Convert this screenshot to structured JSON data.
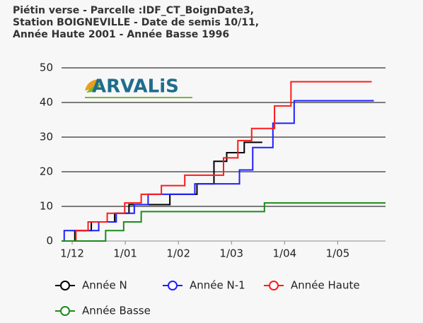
{
  "chart_data": {
    "type": "step-line",
    "title": [
      "Piétin verse - Parcelle :IDF_CT_BoignDate3,",
      "Station BOIGNEVILLE - Date de semis 10/11,",
      "Année Haute 2001 - Année Basse 1996"
    ],
    "logo": "ARVALiS",
    "xlim": [
      -0.2,
      5.9
    ],
    "xticks": [
      {
        "value": 0,
        "label": "1/12"
      },
      {
        "value": 1,
        "label": "1/01"
      },
      {
        "value": 2,
        "label": "1/02"
      },
      {
        "value": 3,
        "label": "1/03"
      },
      {
        "value": 4,
        "label": "1/04"
      },
      {
        "value": 5,
        "label": "1/05"
      }
    ],
    "ylim": [
      0,
      50
    ],
    "yticks": [
      0,
      10,
      20,
      30,
      40,
      50
    ],
    "grid": true,
    "legend": "bottom",
    "series": [
      {
        "name": "Année N",
        "color": "#000000",
        "x": [
          -0.2,
          0.05,
          0.36,
          0.8,
          1.07,
          1.84,
          2.35,
          2.67,
          2.91,
          3.24,
          3.58
        ],
        "values": [
          0,
          3,
          5.5,
          8,
          10.5,
          13.5,
          16.5,
          23,
          25.5,
          28.5,
          28.5
        ]
      },
      {
        "name": "Année N-1",
        "color": "#1f1fff",
        "x": [
          -0.2,
          -0.15,
          0.5,
          0.83,
          1.17,
          1.43,
          2.31,
          3.15,
          3.4,
          3.78,
          4.18,
          5.68
        ],
        "values": [
          0,
          3,
          5.5,
          8,
          10.5,
          13.5,
          16.5,
          20.5,
          27,
          34,
          40.5,
          40.5
        ]
      },
      {
        "name": "Année Haute",
        "color": "#ff1a1a",
        "x": [
          -0.2,
          0.07,
          0.3,
          0.66,
          0.99,
          1.3,
          1.68,
          2.12,
          2.85,
          3.12,
          3.38,
          3.81,
          4.12,
          5.64
        ],
        "values": [
          0,
          3,
          5.5,
          8,
          11,
          13.5,
          16,
          19,
          24,
          29,
          32.5,
          39,
          46,
          46
        ]
      },
      {
        "name": "Année Basse",
        "color": "#1a8c1a",
        "x": [
          -0.2,
          0.63,
          0.97,
          1.3,
          3.62,
          5.9
        ],
        "values": [
          0,
          3,
          5.5,
          8.5,
          11,
          11
        ]
      }
    ]
  }
}
